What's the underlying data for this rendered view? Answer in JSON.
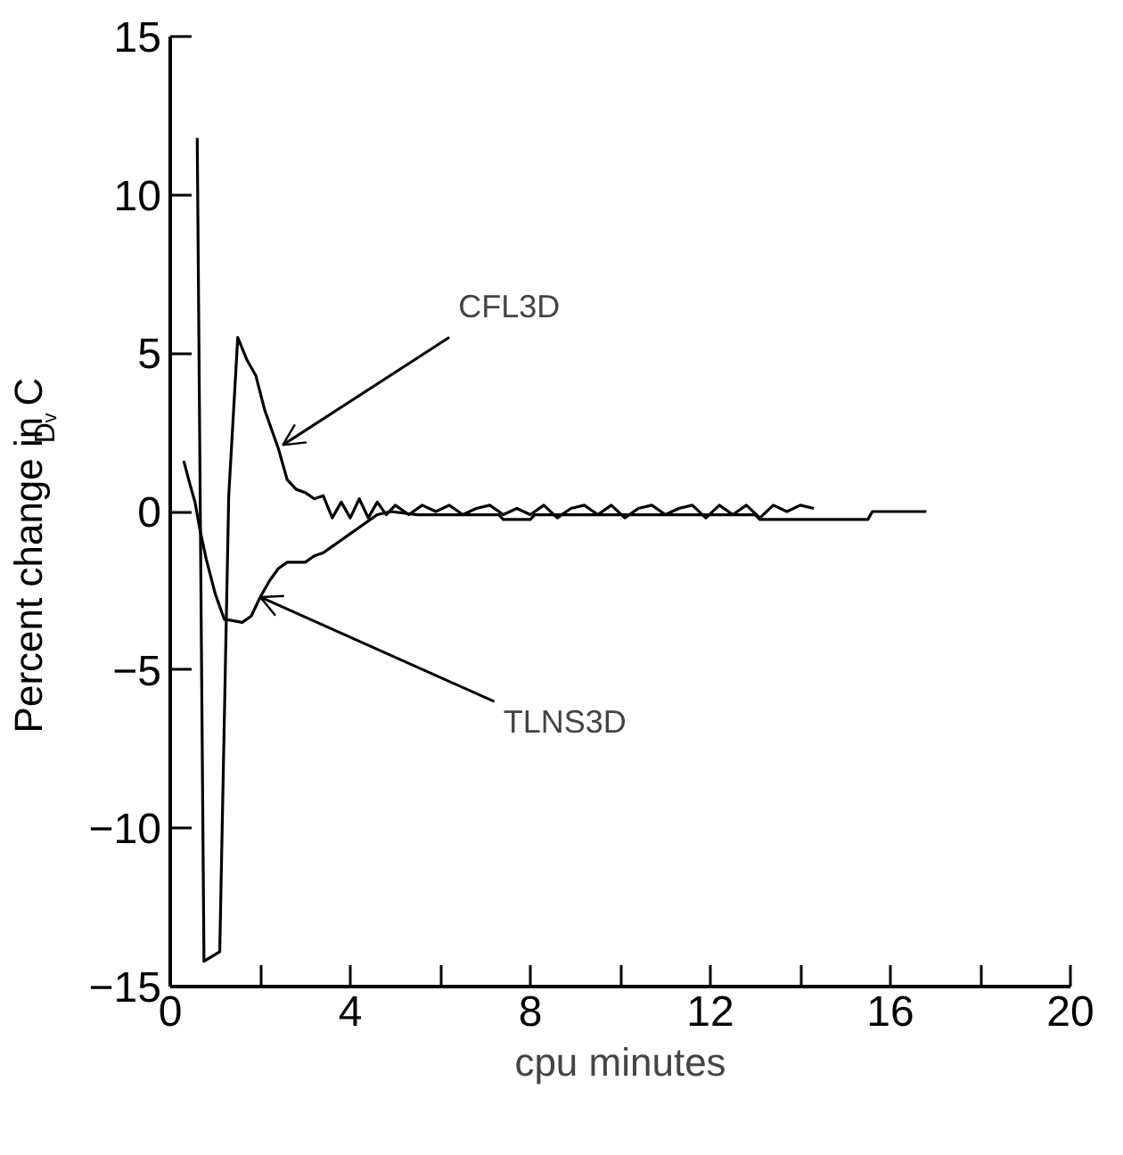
{
  "chart_data": {
    "type": "line",
    "xlabel": "cpu minutes",
    "ylabel": "Percent change in C$_{Dᵥ}$",
    "xlim": [
      0,
      20
    ],
    "ylim": [
      -15,
      15
    ],
    "xticks": [
      0,
      {
        "value": 2,
        "label": null
      },
      4,
      {
        "value": 6,
        "label": null
      },
      8,
      {
        "value": 10,
        "label": null
      },
      12,
      {
        "value": 14,
        "label": null
      },
      16,
      {
        "value": 18,
        "label": null
      },
      20
    ],
    "yticks": [
      -15,
      -10,
      -5,
      0,
      5,
      10,
      15
    ],
    "grid": false,
    "marker": "none",
    "line_style": "solid",
    "series": [
      {
        "color": "#000000",
        "x": [
          0.6,
          0.75,
          1.1,
          1.3,
          1.5,
          1.7,
          1.9,
          2.1,
          2.4,
          2.6,
          2.8,
          3.0,
          3.2,
          3.4,
          3.6,
          3.8,
          4.0,
          4.2,
          4.4,
          4.6,
          4.8,
          5.0,
          5.3,
          5.6,
          5.9,
          6.2,
          6.5,
          6.8,
          7.1,
          7.4,
          7.7,
          8.0,
          8.3,
          8.6,
          8.9,
          9.2,
          9.5,
          9.8,
          10.1,
          10.4,
          10.7,
          11.0,
          11.3,
          11.6,
          11.9,
          12.2,
          12.5,
          12.8,
          13.1,
          13.4,
          13.7,
          14.0,
          14.3
        ],
        "values": [
          11.8,
          -14.2,
          -13.9,
          0.5,
          5.5,
          4.8,
          4.3,
          3.2,
          2.0,
          1.0,
          0.7,
          0.6,
          0.4,
          0.5,
          -0.2,
          0.3,
          -0.2,
          0.4,
          -0.2,
          0.3,
          -0.1,
          0.2,
          -0.1,
          0.2,
          0.0,
          0.2,
          -0.1,
          0.1,
          0.2,
          -0.1,
          0.1,
          -0.1,
          0.2,
          -0.2,
          0.1,
          0.2,
          -0.1,
          0.2,
          -0.2,
          0.1,
          0.2,
          -0.1,
          0.1,
          0.2,
          -0.2,
          0.2,
          -0.1,
          0.2,
          -0.2,
          0.2,
          0.0,
          0.2,
          0.1
        ]
      },
      {
        "color": "#000000",
        "x": [
          0.3,
          0.45,
          0.55,
          0.65,
          0.8,
          1.0,
          1.2,
          1.6,
          1.8,
          2.0,
          2.2,
          2.4,
          2.6,
          3.0,
          3.2,
          3.4,
          3.6,
          3.8,
          4.0,
          4.2,
          4.4,
          4.6,
          4.9,
          5.5,
          7.3,
          7.4,
          8.0,
          8.1,
          13.0,
          13.1,
          15.5,
          15.6,
          16.8
        ],
        "values": [
          1.6,
          0.8,
          0.3,
          -0.5,
          -1.5,
          -2.6,
          -3.4,
          -3.5,
          -3.3,
          -2.7,
          -2.2,
          -1.8,
          -1.6,
          -1.6,
          -1.4,
          -1.3,
          -1.1,
          -0.9,
          -0.7,
          -0.5,
          -0.3,
          -0.1,
          0.0,
          -0.1,
          -0.1,
          -0.25,
          -0.25,
          -0.1,
          -0.1,
          -0.25,
          -0.25,
          0.0,
          0.0
        ]
      }
    ],
    "annotations": [
      {
        "text": "CFL3D",
        "x": 2.5,
        "y": 2.1
      },
      {
        "text": "TLNS3D",
        "x": 2.0,
        "y": -2.7
      }
    ]
  }
}
